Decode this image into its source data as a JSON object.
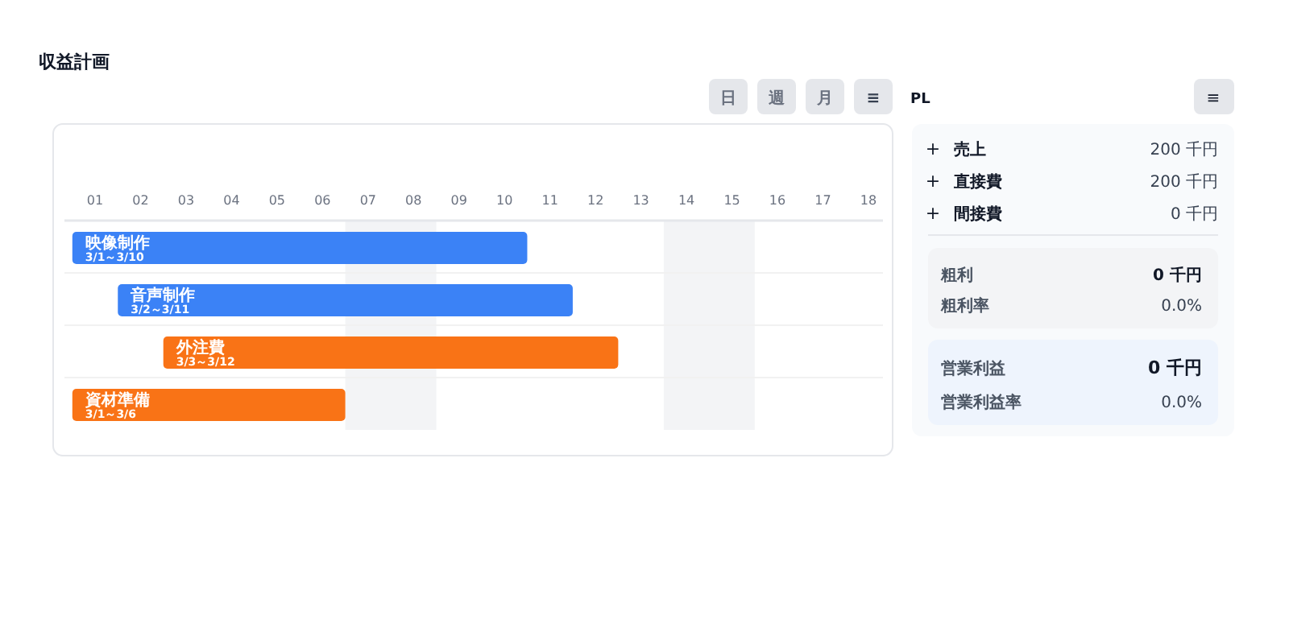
{
  "chart_data": [
    {
      "type": "bar",
      "title": "収益計画",
      "orientation": "horizontal",
      "categories": [
        "映像制作",
        "音声制作",
        "外注費",
        "資材準備"
      ],
      "base": [
        0.5,
        1.5,
        2.5,
        0.5
      ],
      "values": [
        10,
        10,
        10,
        6
      ],
      "colors": [
        "#3b82f6",
        "#3b82f6",
        "#f97316",
        "#f97316"
      ],
      "value_labels": [
        "3/1～3/10",
        "3/2～3/11",
        "3/3～3/12",
        "3/1～3/6"
      ],
      "xlim": [
        0.5,
        18.5
      ],
      "xticks": [
        {
          "value": 1,
          "label": "01"
        },
        {
          "value": 2,
          "label": "02"
        },
        {
          "value": 3,
          "label": "03"
        },
        {
          "value": 4,
          "label": "04"
        },
        {
          "value": 5,
          "label": "05"
        },
        {
          "value": 6,
          "label": "06"
        },
        {
          "value": 7,
          "label": "07"
        },
        {
          "value": 8,
          "label": "08"
        },
        {
          "value": 9,
          "label": "09"
        },
        {
          "value": 10,
          "label": "10"
        },
        {
          "value": 11,
          "label": "11"
        },
        {
          "value": 12,
          "label": "12"
        },
        {
          "value": 13,
          "label": "13"
        },
        {
          "value": 14,
          "label": "14"
        },
        {
          "value": 15,
          "label": "15"
        },
        {
          "value": 16,
          "label": "16"
        },
        {
          "value": 17,
          "label": "17"
        },
        {
          "value": 18,
          "label": "18"
        }
      ],
      "bands": [
        {
          "axis": "x",
          "from": 6.5,
          "to": 8.5,
          "color": "#f3f4f6"
        },
        {
          "axis": "x",
          "from": 13.5,
          "to": 15.5,
          "color": "#f3f4f6"
        }
      ],
      "annotations": [
        "日",
        "週",
        "月",
        "≡"
      ]
    },
    {
      "type": "other",
      "title": "PL",
      "annotations": [
        "≡",
        "+",
        "売上",
        "200 千円",
        "+",
        "直接費",
        "200 千円",
        "+",
        "間接費",
        "0 千円",
        "粗利",
        "0 千円",
        "粗利率",
        "0.0%",
        "営業利益",
        "0 千円",
        "営業利益率",
        "0.0%"
      ]
    }
  ]
}
